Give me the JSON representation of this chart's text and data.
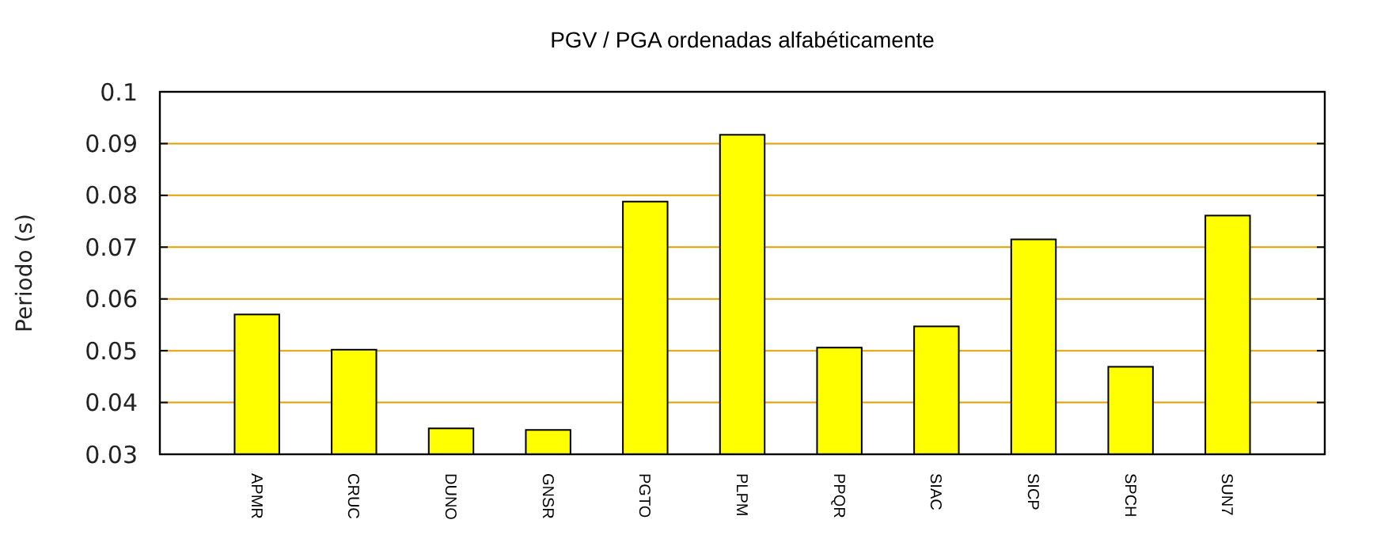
{
  "chart_data": {
    "type": "bar",
    "title": "PGV / PGA ordenadas alfabéticamente",
    "ylabel": "Periodo (s)",
    "categories": [
      "APMR",
      "CRUC",
      "DUNO",
      "GNSR",
      "PGTO",
      "PLPM",
      "PPQR",
      "SIAC",
      "SICP",
      "SPCH",
      "SUN7"
    ],
    "values": [
      0.057,
      0.0502,
      0.035,
      0.0347,
      0.0788,
      0.0917,
      0.0506,
      0.0547,
      0.0715,
      0.0469,
      0.0761
    ],
    "color": "#ffff00",
    "ylim": [
      0.03,
      0.1
    ],
    "yticks": [
      {
        "value": 0.03,
        "label": "0.03"
      },
      {
        "value": 0.04,
        "label": "0.04"
      },
      {
        "value": 0.05,
        "label": "0.05"
      },
      {
        "value": 0.06,
        "label": "0.06"
      },
      {
        "value": 0.07,
        "label": "0.07"
      },
      {
        "value": 0.08,
        "label": "0.08"
      },
      {
        "value": 0.09,
        "label": "0.09"
      },
      {
        "value": 0.1,
        "label": "0.1"
      }
    ],
    "grid": "y"
  }
}
